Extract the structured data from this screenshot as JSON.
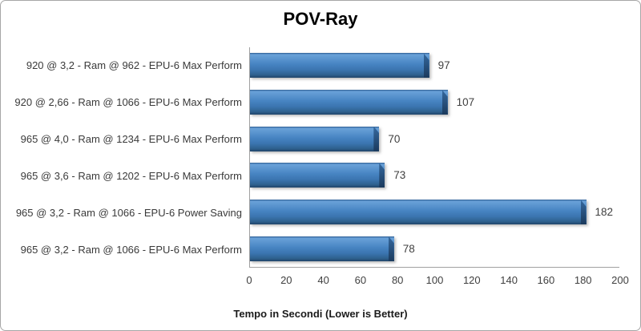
{
  "chart_data": {
    "type": "bar",
    "orientation": "horizontal",
    "title": "POV-Ray",
    "xlabel": "Tempo in Secondi (Lower is Better)",
    "categories": [
      "920 @ 3,2 - Ram @ 962 - EPU-6 Max Perform",
      "920 @ 2,66 - Ram @ 1066 - EPU-6 Max Perform",
      "965 @ 4,0 - Ram @ 1234 - EPU-6 Max Perform",
      "965 @ 3,6 - Ram @ 1202 - EPU-6 Max Perform",
      "965 @ 3,2 - Ram @ 1066 - EPU-6 Power Saving",
      "965 @ 3,2 - Ram @ 1066 - EPU-6 Max Perform"
    ],
    "values": [
      97,
      107,
      70,
      73,
      182,
      78
    ],
    "xlim": [
      0,
      200
    ],
    "xticks": [
      0,
      20,
      40,
      60,
      80,
      100,
      120,
      140,
      160,
      180,
      200
    ],
    "grid": false,
    "legend": false,
    "bar_color": "#3F7CBF",
    "bar_highlight_color": "#69A1D8",
    "bar_edge_color": "#20456A",
    "axis_line_color": "#A0A0A0",
    "text_color": "#404040",
    "background_color": "#FFFFFF"
  }
}
